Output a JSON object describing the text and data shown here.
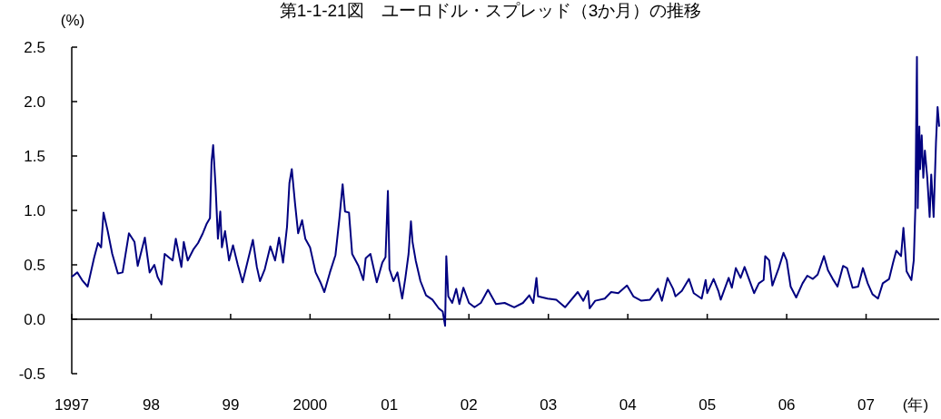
{
  "chart_data": {
    "type": "line",
    "title": "第1-1-21図　ユーロドル・スプレッド（3か月）の推移",
    "ylabel": "(%)",
    "xlabel": "(年)",
    "color": "#000080",
    "xlim": [
      1997,
      2007.92
    ],
    "ylim": [
      -0.5,
      2.5
    ],
    "xticks": [
      1997,
      {
        "value": 1998,
        "label": "98"
      },
      {
        "value": 1999,
        "label": "99"
      },
      2000,
      {
        "value": 2001,
        "label": "01"
      },
      {
        "value": 2002,
        "label": "02"
      },
      {
        "value": 2003,
        "label": "03"
      },
      {
        "value": 2004,
        "label": "04"
      },
      {
        "value": 2005,
        "label": "05"
      },
      {
        "value": 2006,
        "label": "06"
      },
      {
        "value": 2007,
        "label": "07"
      }
    ],
    "yticks": [
      {
        "value": -0.5,
        "label": "-0.5"
      },
      {
        "value": 0,
        "label": "0.0"
      },
      0.5,
      {
        "value": 1,
        "label": "1.0"
      },
      1.5,
      {
        "value": 2,
        "label": "2.0"
      },
      2.5
    ],
    "x": [
      1997.0,
      1997.07,
      1997.13,
      1997.2,
      1997.24,
      1997.28,
      1997.33,
      1997.37,
      1997.4,
      1997.45,
      1997.51,
      1997.58,
      1997.64,
      1997.72,
      1997.79,
      1997.83,
      1997.92,
      1997.98,
      1998.04,
      1998.08,
      1998.13,
      1998.17,
      1998.27,
      1998.31,
      1998.38,
      1998.41,
      1998.46,
      1998.53,
      1998.59,
      1998.65,
      1998.7,
      1998.74,
      1998.76,
      1998.78,
      1998.81,
      1998.84,
      1998.87,
      1998.89,
      1998.93,
      1998.98,
      1999.03,
      1999.09,
      1999.15,
      1999.2,
      1999.28,
      1999.33,
      1999.37,
      1999.43,
      1999.5,
      1999.56,
      1999.61,
      1999.66,
      1999.71,
      1999.74,
      1999.77,
      1999.81,
      1999.85,
      1999.9,
      1999.94,
      2000.0,
      2000.07,
      2000.13,
      2000.18,
      2000.25,
      2000.32,
      2000.37,
      2000.41,
      2000.44,
      2000.49,
      2000.53,
      2000.61,
      2000.67,
      2000.7,
      2000.76,
      2000.84,
      2000.91,
      2000.95,
      2000.98,
      2001.0,
      2001.05,
      2001.1,
      2001.16,
      2001.2,
      2001.24,
      2001.27,
      2001.29,
      2001.33,
      2001.39,
      2001.46,
      2001.54,
      2001.62,
      2001.67,
      2001.7,
      2001.715,
      2001.74,
      2001.79,
      2001.84,
      2001.88,
      2001.93,
      2002.0,
      2002.07,
      2002.15,
      2002.24,
      2002.34,
      2002.45,
      2002.57,
      2002.68,
      2002.76,
      2002.81,
      2002.85,
      2002.87,
      2002.99,
      2003.1,
      2003.21,
      2003.37,
      2003.44,
      2003.5,
      2003.52,
      2003.59,
      2003.71,
      2003.79,
      2003.88,
      2003.99,
      2004.07,
      2004.17,
      2004.28,
      2004.38,
      2004.43,
      2004.5,
      2004.57,
      2004.6,
      2004.68,
      2004.77,
      2004.83,
      2004.93,
      2004.98,
      2005.0,
      2005.08,
      2005.14,
      2005.17,
      2005.27,
      2005.31,
      2005.36,
      2005.42,
      2005.47,
      2005.52,
      2005.59,
      2005.65,
      2005.71,
      2005.73,
      2005.78,
      2005.82,
      2005.9,
      2005.96,
      2006.0,
      2006.05,
      2006.12,
      2006.2,
      2006.26,
      2006.33,
      2006.39,
      2006.47,
      2006.52,
      2006.58,
      2006.64,
      2006.71,
      2006.76,
      2006.83,
      2006.9,
      2006.96,
      2007.02,
      2007.08,
      2007.15,
      2007.21,
      2007.29,
      2007.34,
      2007.38,
      2007.44,
      2007.47,
      2007.51,
      2007.57,
      2007.6,
      2007.62,
      2007.63,
      2007.64,
      2007.65,
      2007.67,
      2007.68,
      2007.7,
      2007.72,
      2007.74,
      2007.77,
      2007.8,
      2007.82,
      2007.85,
      2007.88,
      2007.9,
      2007.92
    ],
    "values": [
      0.39,
      0.43,
      0.36,
      0.3,
      0.43,
      0.56,
      0.7,
      0.66,
      0.98,
      0.82,
      0.6,
      0.42,
      0.43,
      0.79,
      0.71,
      0.49,
      0.75,
      0.43,
      0.5,
      0.39,
      0.32,
      0.6,
      0.54,
      0.74,
      0.48,
      0.71,
      0.54,
      0.64,
      0.7,
      0.79,
      0.88,
      0.93,
      1.45,
      1.6,
      1.23,
      0.74,
      0.99,
      0.66,
      0.81,
      0.54,
      0.68,
      0.5,
      0.34,
      0.49,
      0.73,
      0.48,
      0.35,
      0.46,
      0.67,
      0.54,
      0.75,
      0.52,
      0.85,
      1.25,
      1.38,
      1.07,
      0.79,
      0.91,
      0.74,
      0.66,
      0.43,
      0.34,
      0.25,
      0.43,
      0.59,
      0.93,
      1.24,
      0.99,
      0.98,
      0.6,
      0.49,
      0.36,
      0.56,
      0.6,
      0.34,
      0.52,
      0.57,
      1.18,
      0.46,
      0.35,
      0.43,
      0.19,
      0.38,
      0.6,
      0.9,
      0.71,
      0.54,
      0.35,
      0.22,
      0.18,
      0.1,
      0.07,
      -0.06,
      0.58,
      0.21,
      0.15,
      0.28,
      0.14,
      0.29,
      0.15,
      0.11,
      0.15,
      0.27,
      0.14,
      0.15,
      0.11,
      0.15,
      0.22,
      0.15,
      0.38,
      0.21,
      0.19,
      0.18,
      0.11,
      0.25,
      0.17,
      0.26,
      0.1,
      0.17,
      0.19,
      0.25,
      0.24,
      0.31,
      0.21,
      0.17,
      0.18,
      0.28,
      0.17,
      0.38,
      0.28,
      0.21,
      0.26,
      0.37,
      0.24,
      0.19,
      0.36,
      0.24,
      0.37,
      0.26,
      0.18,
      0.38,
      0.29,
      0.47,
      0.38,
      0.48,
      0.38,
      0.24,
      0.33,
      0.36,
      0.58,
      0.54,
      0.31,
      0.47,
      0.61,
      0.54,
      0.3,
      0.2,
      0.33,
      0.4,
      0.37,
      0.41,
      0.58,
      0.45,
      0.37,
      0.3,
      0.49,
      0.47,
      0.29,
      0.3,
      0.47,
      0.33,
      0.23,
      0.19,
      0.33,
      0.37,
      0.52,
      0.63,
      0.58,
      0.84,
      0.44,
      0.36,
      0.54,
      1.02,
      1.74,
      2.41,
      1.02,
      1.77,
      1.38,
      1.69,
      1.3,
      1.55,
      1.3,
      0.94,
      1.33,
      0.94,
      1.63,
      1.95,
      1.77
    ]
  }
}
